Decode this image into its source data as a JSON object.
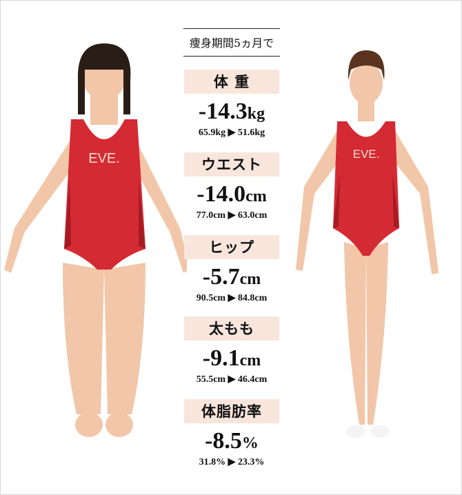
{
  "header": {
    "period": "痩身期間5ヵ月で"
  },
  "colors": {
    "label_bg": "#f8e6dc",
    "swimsuit": "#d42a33",
    "skin": "#f2c6a8"
  },
  "stats": [
    {
      "label": "体 重",
      "value": "-14.3",
      "unit": "kg",
      "before": "65.9kg",
      "arrow": "▶",
      "after": "51.6kg"
    },
    {
      "label": "ウエスト",
      "value": "-14.0",
      "unit": "cm",
      "before": "77.0cm",
      "arrow": "▶",
      "after": "63.0cm"
    },
    {
      "label": "ヒップ",
      "value": "-5.7",
      "unit": "cm",
      "before": "90.5cm",
      "arrow": "▶",
      "after": "84.8cm"
    },
    {
      "label": "太もも",
      "value": "-9.1",
      "unit": "cm",
      "before": "55.5cm",
      "arrow": "▶",
      "after": "46.4cm"
    },
    {
      "label": "体脂肪率",
      "value": "-8.5",
      "unit": "%",
      "before": "31.8%",
      "arrow": "▶",
      "after": "23.3%"
    }
  ],
  "photos": {
    "before_logo": "EVE.",
    "after_logo": "EVE."
  }
}
